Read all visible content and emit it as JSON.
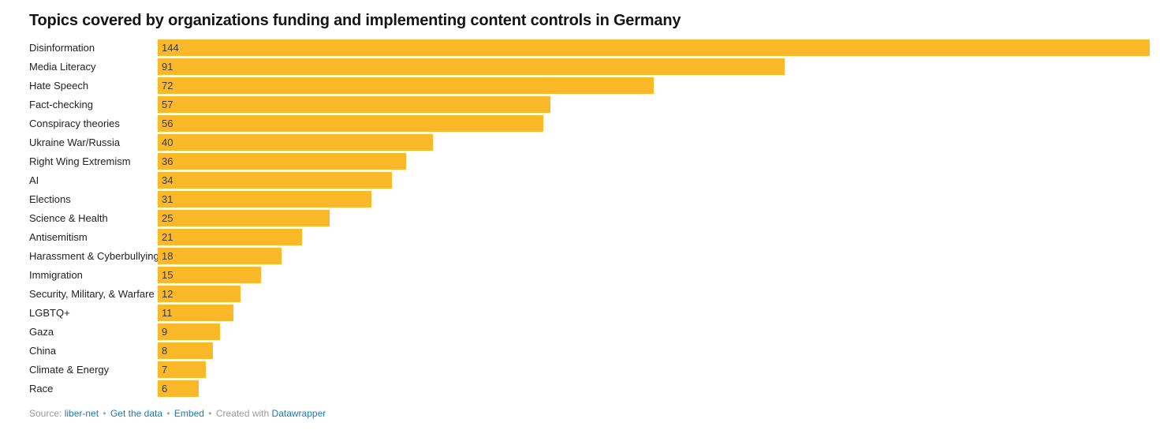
{
  "chart_data": {
    "type": "bar",
    "orientation": "horizontal",
    "title": "Topics covered by organizations funding and implementing content controls in Germany",
    "categories": [
      "Disinformation",
      "Media Literacy",
      "Hate Speech",
      "Fact-checking",
      "Conspiracy theories",
      "Ukraine War/Russia",
      "Right Wing Extremism",
      "AI",
      "Elections",
      "Science & Health",
      "Antisemitism",
      "Harassment & Cyberbullying",
      "Immigration",
      "Security, Military, & Warfare",
      "LGBTQ+",
      "Gaza",
      "China",
      "Climate & Energy",
      "Race"
    ],
    "values": [
      144,
      91,
      72,
      57,
      56,
      40,
      36,
      34,
      31,
      25,
      21,
      18,
      15,
      12,
      11,
      9,
      8,
      7,
      6
    ],
    "xlim": [
      0,
      144
    ],
    "grid": false,
    "legend": "none",
    "value_label_position": "inside-left",
    "bar_color": "#FBB829",
    "value_label_color": "#3a3a3a"
  },
  "footer": {
    "source_label": "Source:",
    "source_name": "liber-net",
    "get_data": "Get the data",
    "embed": "Embed",
    "created_with": "Created with",
    "datawrapper": "Datawrapper",
    "separator": "•",
    "link_color": "#1d7ab0",
    "text_color": "#999999"
  }
}
